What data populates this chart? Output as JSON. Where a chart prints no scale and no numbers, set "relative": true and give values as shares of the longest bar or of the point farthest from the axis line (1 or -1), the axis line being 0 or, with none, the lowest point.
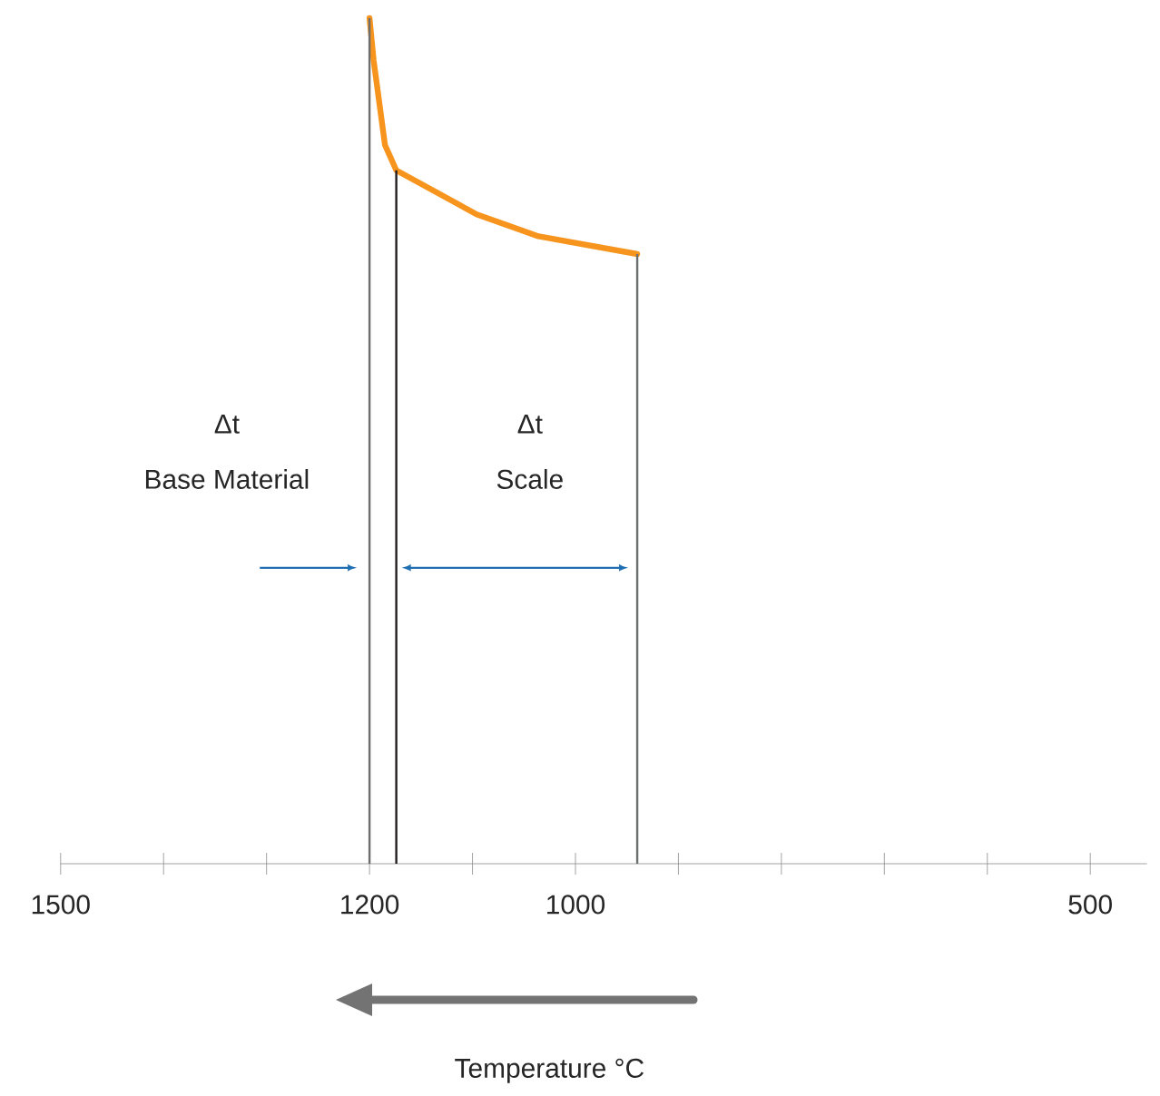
{
  "chart_data": {
    "type": "line",
    "relative": true,
    "xlim": [
      1500,
      445
    ],
    "xticks": [
      1500,
      {
        "value": 1400,
        "label": null
      },
      {
        "value": 1300,
        "label": null
      },
      1200,
      {
        "value": 1100,
        "label": null
      },
      1000,
      {
        "value": 900,
        "label": null
      },
      {
        "value": 800,
        "label": null
      },
      {
        "value": 700,
        "label": null
      },
      {
        "value": 600,
        "label": null
      },
      500
    ],
    "grid": false,
    "tick_labels": "x",
    "series": [
      {
        "color": "#f7941d",
        "x": [
          1200,
          1196,
          1185,
          1174,
          1096,
          1036,
          940
        ],
        "values": [
          1.0,
          0.95,
          0.85,
          0.82,
          0.768,
          0.742,
          0.721
        ]
      }
    ],
    "ref_lines": [
      {
        "axis": "x",
        "value": 1200,
        "color": "#6d6e70"
      },
      {
        "axis": "x",
        "value": 1174,
        "color": "#231f20"
      },
      {
        "axis": "x",
        "value": 940,
        "color": "#6d6e70"
      }
    ],
    "annotations": [
      "Δt",
      "Base Material",
      "Δt",
      "Scale",
      "Temperature °C"
    ]
  }
}
